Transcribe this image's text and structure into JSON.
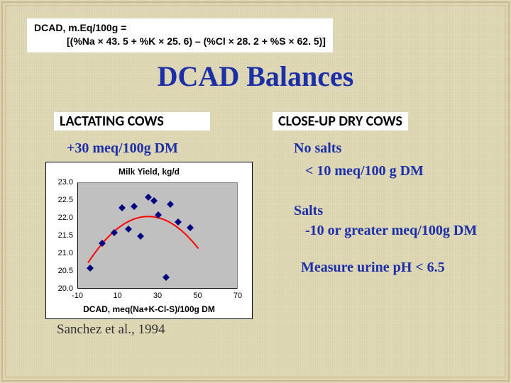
{
  "formula": {
    "line1": "DCAD, m.Eq/100g =",
    "line2": "[(%Na × 43. 5 + %K × 25. 6) – (%Cl × 28. 2 + %S × 62. 5)]"
  },
  "title": "DCAD Balances",
  "left": {
    "heading": "LACTATING COWS",
    "value": "+30 meq/100g DM",
    "citation": "Sanchez et al., 1994"
  },
  "right": {
    "heading": "CLOSE-UP DRY  COWS",
    "nosalts_label": "No salts",
    "nosalts_value": "< 10 meq/100 g DM",
    "salts_label": "Salts",
    "salts_value": "-10 or greater meq/100g DM",
    "measure": "Measure urine pH  < 6.5"
  },
  "chart": {
    "type": "scatter",
    "title": "Milk Yield, kg/d",
    "xlabel": "DCAD, meq(Na+K-Cl-S)/100g DM",
    "plot_bg": "#c0c0c0",
    "box_bg": "#ffffff",
    "curve_color": "#ff0000",
    "marker_color": "#000080",
    "xlim": [
      -10,
      70
    ],
    "ylim": [
      20.0,
      23.0
    ],
    "xticks": [
      -10,
      10,
      30,
      50,
      70
    ],
    "yticks": [
      20.0,
      20.5,
      21.0,
      21.5,
      22.0,
      22.5,
      23.0
    ],
    "points": [
      {
        "x": -4,
        "y": 20.6
      },
      {
        "x": 2,
        "y": 21.3
      },
      {
        "x": 8,
        "y": 21.6
      },
      {
        "x": 12,
        "y": 22.3
      },
      {
        "x": 15,
        "y": 21.7
      },
      {
        "x": 18,
        "y": 22.35
      },
      {
        "x": 21,
        "y": 21.5
      },
      {
        "x": 25,
        "y": 22.6
      },
      {
        "x": 28,
        "y": 22.5
      },
      {
        "x": 30,
        "y": 22.1
      },
      {
        "x": 34,
        "y": 20.35
      },
      {
        "x": 36,
        "y": 22.4
      },
      {
        "x": 40,
        "y": 21.9
      },
      {
        "x": 46,
        "y": 21.75
      }
    ],
    "curve": {
      "a": -0.00145,
      "b": 0.0725,
      "c": 21.15,
      "xmin": -5,
      "xmax": 50
    },
    "title_fontsize": 12,
    "label_fontsize": 12,
    "tick_fontsize": 11,
    "marker_size": 7,
    "curve_width": 2
  }
}
